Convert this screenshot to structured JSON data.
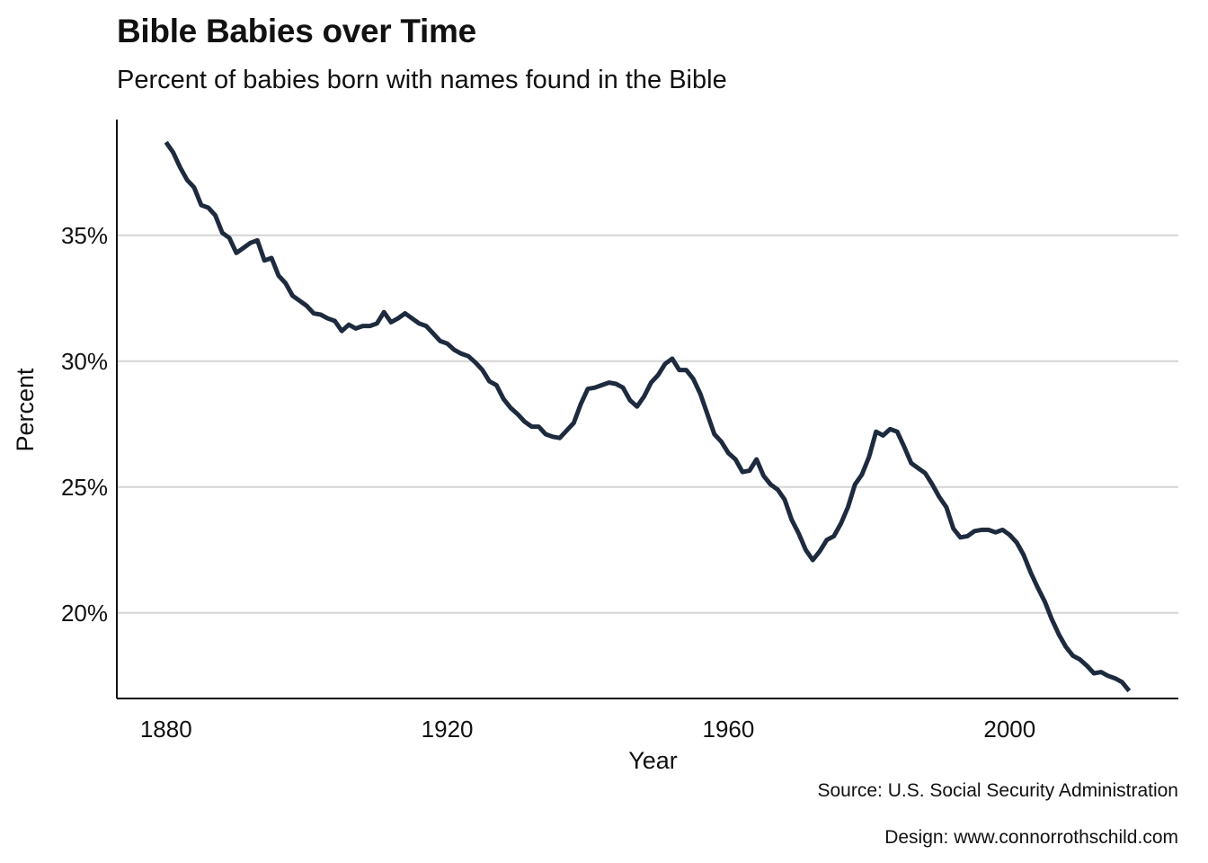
{
  "chart_data": {
    "type": "line",
    "title": "Bible Babies over Time",
    "subtitle": "Percent of babies born with names found in the Bible",
    "xlabel": "Year",
    "ylabel": "Percent",
    "xlim": [
      1873,
      2024
    ],
    "ylim": [
      16.6,
      39.6
    ],
    "x_ticks": [
      1880,
      1920,
      1960,
      2000
    ],
    "x_tick_labels": [
      "1880",
      "1920",
      "1960",
      "2000"
    ],
    "y_ticks": [
      20,
      25,
      30,
      35
    ],
    "y_tick_labels": [
      "20%",
      "25%",
      "30%",
      "35%"
    ],
    "grid": "horizontal",
    "line_color": "#1e2b3e",
    "gridline_color": "#d4d4d4",
    "series": [
      {
        "x": [
          1880,
          1881,
          1882,
          1883,
          1884,
          1885,
          1886,
          1887,
          1888,
          1889,
          1890,
          1891,
          1892,
          1893,
          1894,
          1895,
          1896,
          1897,
          1898,
          1899,
          1900,
          1901,
          1902,
          1903,
          1904,
          1905,
          1906,
          1907,
          1908,
          1909,
          1910,
          1911,
          1912,
          1913,
          1914,
          1915,
          1916,
          1917,
          1918,
          1919,
          1920,
          1921,
          1922,
          1923,
          1924,
          1925,
          1926,
          1927,
          1928,
          1929,
          1930,
          1931,
          1932,
          1933,
          1934,
          1935,
          1936,
          1937,
          1938,
          1939,
          1940,
          1941,
          1942,
          1943,
          1944,
          1945,
          1946,
          1947,
          1948,
          1949,
          1950,
          1951,
          1952,
          1953,
          1954,
          1955,
          1956,
          1957,
          1958,
          1959,
          1960,
          1961,
          1962,
          1963,
          1964,
          1965,
          1966,
          1967,
          1968,
          1969,
          1970,
          1971,
          1972,
          1973,
          1974,
          1975,
          1976,
          1977,
          1978,
          1979,
          1980,
          1981,
          1982,
          1983,
          1984,
          1985,
          1986,
          1987,
          1988,
          1989,
          1990,
          1991,
          1992,
          1993,
          1994,
          1995,
          1996,
          1997,
          1998,
          1999,
          2000,
          2001,
          2002,
          2003,
          2004,
          2005,
          2006,
          2007,
          2008,
          2009,
          2010,
          2011,
          2012,
          2013,
          2014,
          2015,
          2016,
          2017
        ],
        "values": [
          38.7,
          38.3,
          37.7,
          37.2,
          36.9,
          36.2,
          36.1,
          35.8,
          35.1,
          34.9,
          34.3,
          34.5,
          34.7,
          34.8,
          34.0,
          34.1,
          33.4,
          33.1,
          32.6,
          32.4,
          32.2,
          31.9,
          31.85,
          31.7,
          31.6,
          31.2,
          31.45,
          31.3,
          31.4,
          31.4,
          31.5,
          31.95,
          31.55,
          31.7,
          31.9,
          31.7,
          31.5,
          31.4,
          31.1,
          30.8,
          30.7,
          30.45,
          30.3,
          30.2,
          29.95,
          29.65,
          29.2,
          29.05,
          28.5,
          28.15,
          27.9,
          27.6,
          27.4,
          27.4,
          27.1,
          27.0,
          26.95,
          27.25,
          27.55,
          28.3,
          28.9,
          28.95,
          29.05,
          29.15,
          29.1,
          28.95,
          28.45,
          28.2,
          28.6,
          29.15,
          29.45,
          29.9,
          30.1,
          29.65,
          29.65,
          29.3,
          28.7,
          27.9,
          27.1,
          26.8,
          26.35,
          26.1,
          25.6,
          25.65,
          26.1,
          25.45,
          25.1,
          24.9,
          24.5,
          23.7,
          23.15,
          22.5,
          22.1,
          22.45,
          22.9,
          23.05,
          23.55,
          24.2,
          25.1,
          25.5,
          26.2,
          27.2,
          27.05,
          27.3,
          27.2,
          26.6,
          25.95,
          25.75,
          25.55,
          25.1,
          24.6,
          24.2,
          23.35,
          23.0,
          23.05,
          23.25,
          23.3,
          23.3,
          23.2,
          23.3,
          23.1,
          22.8,
          22.3,
          21.6,
          21.0,
          20.45,
          19.75,
          19.15,
          18.65,
          18.3,
          18.15,
          17.9,
          17.6,
          17.65,
          17.5,
          17.4,
          17.25,
          16.9
        ]
      }
    ]
  },
  "source": "Source: U.S. Social Security Administration",
  "design": "Design: www.connorrothschild.com"
}
